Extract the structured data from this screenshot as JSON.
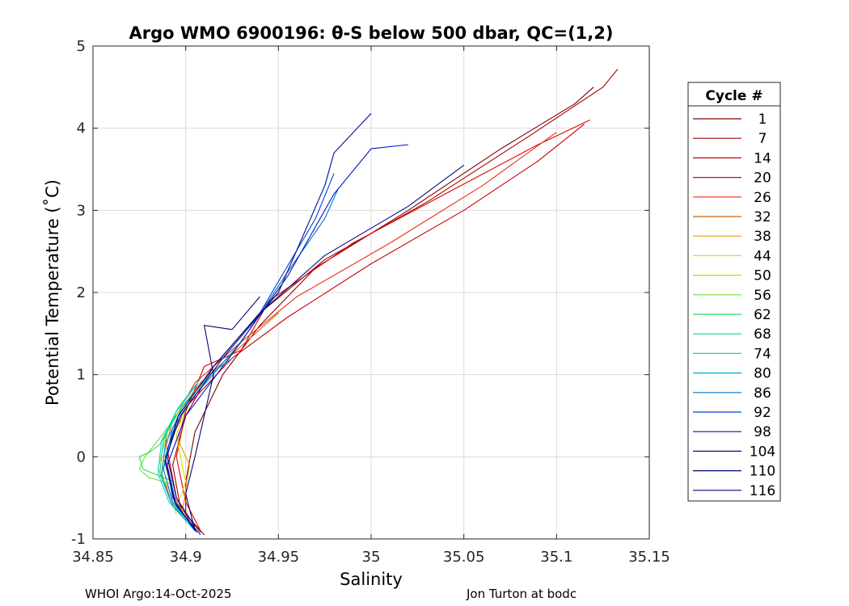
{
  "chart_data": {
    "type": "line",
    "title": "Argo WMO 6900196: θ-S below 500 dbar,  QC=(1,2)",
    "xlabel": "Salinity",
    "ylabel": "Potential Temperature (˚C)",
    "xlim": [
      34.85,
      35.15
    ],
    "ylim": [
      -1,
      5
    ],
    "xticks": [
      34.85,
      34.9,
      34.95,
      35,
      35.05,
      35.1,
      35.15
    ],
    "xtick_labels": [
      "34.85",
      "34.9",
      "34.95",
      "35",
      "35.05",
      "35.1",
      "35.15"
    ],
    "yticks": [
      -1,
      0,
      1,
      2,
      3,
      4,
      5
    ],
    "ytick_labels": [
      "-1",
      "0",
      "1",
      "2",
      "3",
      "4",
      "5"
    ],
    "grid": true,
    "legend": {
      "title": "Cycle #",
      "placement": "outside-right",
      "entries": [
        {
          "label": "1",
          "color": "#800000"
        },
        {
          "label": "7",
          "color": "#a00000"
        },
        {
          "label": "14",
          "color": "#c80000"
        },
        {
          "label": "20",
          "color": "#e60000"
        },
        {
          "label": "26",
          "color": "#e83010"
        },
        {
          "label": "32",
          "color": "#c86400"
        },
        {
          "label": "38",
          "color": "#e0a000"
        },
        {
          "label": "44",
          "color": "#e8d800"
        },
        {
          "label": "50",
          "color": "#b4e000"
        },
        {
          "label": "56",
          "color": "#70e040"
        },
        {
          "label": "62",
          "color": "#20e060"
        },
        {
          "label": "68",
          "color": "#00d8a0"
        },
        {
          "label": "74",
          "color": "#00d8d8"
        },
        {
          "label": "80",
          "color": "#00a8d0"
        },
        {
          "label": "86",
          "color": "#0078c8"
        },
        {
          "label": "92",
          "color": "#0040d0"
        },
        {
          "label": "98",
          "color": "#0018c8"
        },
        {
          "label": "104",
          "color": "#00108c"
        },
        {
          "label": "110",
          "color": "#000870"
        },
        {
          "label": "116",
          "color": "#000c80"
        }
      ]
    },
    "series": [
      {
        "name": "1",
        "color": "#800000",
        "points": [
          [
            34.91,
            -0.95
          ],
          [
            34.9,
            -0.7
          ],
          [
            34.9,
            -0.3
          ],
          [
            34.905,
            0.3
          ],
          [
            34.92,
            1.0
          ],
          [
            34.94,
            1.6
          ],
          [
            34.97,
            2.3
          ],
          [
            35.02,
            3.0
          ],
          [
            35.07,
            3.75
          ],
          [
            35.11,
            4.3
          ],
          [
            35.12,
            4.5
          ]
        ]
      },
      {
        "name": "7",
        "color": "#a00000",
        "points": [
          [
            34.908,
            -0.92
          ],
          [
            34.897,
            -0.6
          ],
          [
            34.893,
            -0.1
          ],
          [
            34.9,
            0.5
          ],
          [
            34.915,
            1.1
          ],
          [
            34.94,
            1.75
          ],
          [
            34.975,
            2.4
          ],
          [
            35.03,
            3.1
          ],
          [
            35.085,
            3.9
          ],
          [
            35.125,
            4.5
          ],
          [
            35.133,
            4.72
          ]
        ]
      },
      {
        "name": "14",
        "color": "#c80000",
        "points": [
          [
            34.905,
            -0.9
          ],
          [
            34.895,
            -0.5
          ],
          [
            34.89,
            0.1
          ],
          [
            34.9,
            0.6
          ],
          [
            34.925,
            1.2
          ],
          [
            34.955,
            1.7
          ],
          [
            35.0,
            2.35
          ],
          [
            35.05,
            3.0
          ],
          [
            35.09,
            3.6
          ],
          [
            35.115,
            4.05
          ]
        ]
      },
      {
        "name": "20",
        "color": "#e60000",
        "points": [
          [
            34.908,
            -0.9
          ],
          [
            34.9,
            -0.55
          ],
          [
            34.895,
            0.0
          ],
          [
            34.9,
            0.55
          ],
          [
            34.91,
            1.1
          ],
          [
            34.93,
            1.3
          ],
          [
            34.945,
            1.9
          ],
          [
            34.99,
            2.6
          ],
          [
            35.04,
            3.2
          ],
          [
            35.09,
            3.8
          ],
          [
            35.118,
            4.1
          ]
        ]
      },
      {
        "name": "26",
        "color": "#e83010",
        "points": [
          [
            34.905,
            -0.85
          ],
          [
            34.893,
            -0.6
          ],
          [
            34.887,
            -0.2
          ],
          [
            34.89,
            0.3
          ],
          [
            34.905,
            0.9
          ],
          [
            34.93,
            1.4
          ],
          [
            34.96,
            1.95
          ],
          [
            35.01,
            2.6
          ],
          [
            35.06,
            3.3
          ],
          [
            35.1,
            3.95
          ]
        ]
      },
      {
        "name": "32",
        "color": "#c86400",
        "points": [
          [
            34.9,
            -0.75
          ],
          [
            34.893,
            -0.45
          ],
          [
            34.888,
            0.0
          ],
          [
            34.893,
            0.45
          ],
          [
            34.908,
            0.9
          ],
          [
            34.93,
            1.35
          ],
          [
            34.95,
            1.75
          ]
        ]
      },
      {
        "name": "38",
        "color": "#e0a000",
        "points": [
          [
            34.898,
            -0.7
          ],
          [
            34.9,
            -0.4
          ],
          [
            34.902,
            -0.1
          ],
          [
            34.896,
            0.2
          ],
          [
            34.9,
            0.6
          ],
          [
            34.915,
            1.05
          ]
        ]
      },
      {
        "name": "44",
        "color": "#e8d800",
        "points": [
          [
            34.897,
            -0.5
          ],
          [
            34.9,
            -0.3
          ],
          [
            34.898,
            -0.1
          ],
          [
            34.895,
            0.25
          ],
          [
            34.9,
            0.65
          ]
        ]
      },
      {
        "name": "50",
        "color": "#b4e000",
        "points": [
          [
            34.895,
            -0.7
          ],
          [
            34.891,
            -0.4
          ],
          [
            34.885,
            -0.15
          ],
          [
            34.89,
            0.3
          ],
          [
            34.9,
            0.7
          ]
        ]
      },
      {
        "name": "56",
        "color": "#70e040",
        "points": [
          [
            34.895,
            -0.35
          ],
          [
            34.88,
            -0.25
          ],
          [
            34.875,
            -0.15
          ],
          [
            34.878,
            0.0
          ],
          [
            34.885,
            0.2
          ],
          [
            34.895,
            0.5
          ]
        ]
      },
      {
        "name": "62",
        "color": "#20e060",
        "points": [
          [
            34.893,
            -0.3
          ],
          [
            34.877,
            -0.15
          ],
          [
            34.875,
            0.0
          ],
          [
            34.88,
            0.05
          ],
          [
            34.886,
            0.15
          ],
          [
            34.895,
            0.5
          ]
        ]
      },
      {
        "name": "68",
        "color": "#00d8a0",
        "points": [
          [
            34.905,
            -0.88
          ],
          [
            34.892,
            -0.55
          ],
          [
            34.886,
            -0.2
          ],
          [
            34.888,
            0.2
          ],
          [
            34.895,
            0.55
          ],
          [
            34.905,
            0.85
          ]
        ]
      },
      {
        "name": "74",
        "color": "#00d8d8",
        "points": [
          [
            34.903,
            -0.85
          ],
          [
            34.891,
            -0.55
          ],
          [
            34.885,
            -0.2
          ],
          [
            34.887,
            0.2
          ],
          [
            34.896,
            0.6
          ],
          [
            34.908,
            0.95
          ]
        ]
      },
      {
        "name": "80",
        "color": "#00a8d0",
        "points": [
          [
            34.905,
            -0.9
          ],
          [
            34.893,
            -0.6
          ],
          [
            34.887,
            -0.25
          ],
          [
            34.889,
            0.15
          ],
          [
            34.898,
            0.6
          ],
          [
            34.913,
            1.0
          ],
          [
            34.925,
            1.2
          ]
        ]
      },
      {
        "name": "86",
        "color": "#0078c8",
        "points": [
          [
            34.906,
            -0.9
          ],
          [
            34.893,
            -0.55
          ],
          [
            34.888,
            -0.15
          ],
          [
            34.893,
            0.35
          ],
          [
            34.905,
            0.75
          ],
          [
            34.93,
            1.4
          ],
          [
            34.955,
            2.25
          ],
          [
            34.975,
            2.9
          ],
          [
            34.982,
            3.25
          ]
        ]
      },
      {
        "name": "92",
        "color": "#0040d0",
        "points": [
          [
            34.905,
            -0.9
          ],
          [
            34.893,
            -0.5
          ],
          [
            34.889,
            0.0
          ],
          [
            34.896,
            0.5
          ],
          [
            34.915,
            1.1
          ],
          [
            34.94,
            1.75
          ],
          [
            34.97,
            2.9
          ],
          [
            34.98,
            3.45
          ]
        ]
      },
      {
        "name": "98",
        "color": "#0018c8",
        "points": [
          [
            34.908,
            -0.95
          ],
          [
            34.895,
            -0.6
          ],
          [
            34.89,
            -0.1
          ],
          [
            34.9,
            0.5
          ],
          [
            34.925,
            1.25
          ],
          [
            34.955,
            2.2
          ],
          [
            34.98,
            3.2
          ],
          [
            35.0,
            3.75
          ],
          [
            35.02,
            3.8
          ]
        ]
      },
      {
        "name": "104",
        "color": "#00108c",
        "points": [
          [
            34.906,
            -0.92
          ],
          [
            34.894,
            -0.55
          ],
          [
            34.889,
            -0.05
          ],
          [
            34.897,
            0.5
          ],
          [
            34.92,
            1.2
          ],
          [
            34.95,
            2.0
          ],
          [
            34.975,
            3.3
          ],
          [
            34.98,
            3.7
          ],
          [
            35.0,
            4.18
          ]
        ]
      },
      {
        "name": "110",
        "color": "#000870",
        "points": [
          [
            34.905,
            -0.9
          ],
          [
            34.9,
            -0.45
          ],
          [
            34.905,
            0.0
          ],
          [
            34.91,
            0.5
          ],
          [
            34.915,
            1.0
          ],
          [
            34.91,
            1.6
          ],
          [
            34.925,
            1.55
          ],
          [
            34.94,
            1.95
          ]
        ]
      },
      {
        "name": "116",
        "color": "#000c80",
        "points": [
          [
            34.905,
            -0.85
          ],
          [
            34.895,
            -0.5
          ],
          [
            34.89,
            0.0
          ],
          [
            34.896,
            0.5
          ],
          [
            34.915,
            1.1
          ],
          [
            34.94,
            1.75
          ],
          [
            34.975,
            2.45
          ],
          [
            35.02,
            3.05
          ],
          [
            35.05,
            3.55
          ]
        ]
      }
    ]
  },
  "footer": {
    "left": "WHOI Argo:14-Oct-2025",
    "right": "Jon Turton at bodc"
  }
}
